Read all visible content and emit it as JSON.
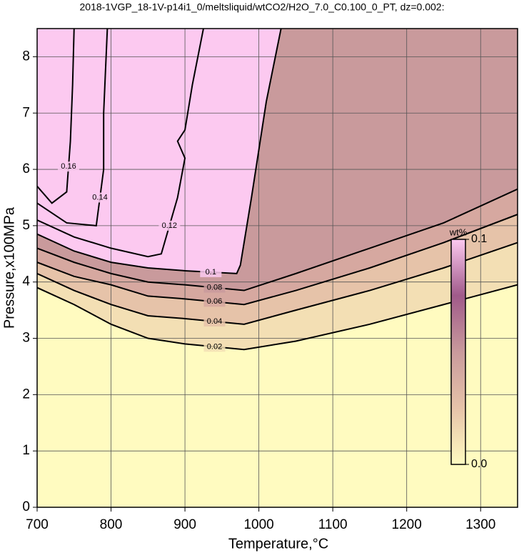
{
  "chart_data": {
    "type": "contour",
    "title": "2018-1VGP_18-1V-p14i1_0/meltsliquid/wtCO2/H2O_7.0_C0.100_0_PT, dz=0.002:",
    "x_label": "Temperature,°C",
    "y_label": "Pressure,x100MPa",
    "xlim": [
      700,
      1350
    ],
    "ylim": [
      0,
      8.5
    ],
    "xticks": [
      700,
      800,
      900,
      1000,
      1100,
      1200,
      1300
    ],
    "yticks": [
      0,
      1,
      2,
      3,
      4,
      5,
      6,
      7,
      8
    ],
    "grid": true,
    "background": "#fffbc0",
    "contours": [
      {
        "level": 0.02,
        "color": "#f3dfb4",
        "x": [
          700,
          750,
          800,
          850,
          900,
          980,
          1050,
          1150,
          1250,
          1350
        ],
        "y": [
          3.9,
          3.6,
          3.25,
          3.0,
          2.9,
          2.8,
          2.95,
          3.25,
          3.6,
          3.95
        ]
      },
      {
        "level": 0.04,
        "color": "#e6c3a9",
        "x": [
          700,
          750,
          800,
          850,
          900,
          980,
          1050,
          1150,
          1250,
          1350
        ],
        "y": [
          4.15,
          3.85,
          3.6,
          3.4,
          3.35,
          3.25,
          3.5,
          3.85,
          4.25,
          4.7
        ]
      },
      {
        "level": 0.06,
        "color": "#d6a8a0",
        "x": [
          700,
          750,
          800,
          850,
          900,
          980,
          1050,
          1150,
          1250,
          1350
        ],
        "y": [
          4.35,
          4.1,
          3.95,
          3.75,
          3.7,
          3.6,
          3.85,
          4.25,
          4.7,
          5.2
        ]
      },
      {
        "level": 0.08,
        "color": "#c99a9c",
        "x": [
          700,
          750,
          800,
          850,
          900,
          980,
          1050,
          1150,
          1250,
          1350
        ],
        "y": [
          4.6,
          4.35,
          4.15,
          4.0,
          3.95,
          3.85,
          4.15,
          4.6,
          5.05,
          5.65
        ]
      },
      {
        "level": 0.1,
        "color": "#fcc9f0",
        "x": [
          700,
          750,
          800,
          850,
          900,
          970,
          975,
          990,
          1010,
          1030
        ],
        "y": [
          4.85,
          4.55,
          4.35,
          4.25,
          4.2,
          4.15,
          4.3,
          5.5,
          7.2,
          8.5
        ]
      },
      {
        "level": 0.12,
        "color": "#fcc9f0",
        "x": [
          700,
          750,
          800,
          850,
          868,
          890,
          900,
          890,
          900,
          910,
          925
        ],
        "y": [
          5.1,
          4.8,
          4.6,
          4.45,
          4.5,
          5.5,
          6.2,
          6.5,
          6.7,
          7.5,
          8.5
        ]
      },
      {
        "level": 0.14,
        "color": "#fcc9f0",
        "x": [
          700,
          740,
          780,
          790,
          790,
          795
        ],
        "y": [
          5.4,
          5.05,
          5.0,
          6.0,
          7.0,
          8.5
        ]
      },
      {
        "level": 0.16,
        "color": "#fcc9f0",
        "x": [
          700,
          720,
          740,
          745,
          748,
          750
        ],
        "y": [
          5.7,
          5.4,
          5.6,
          6.5,
          7.5,
          8.5
        ]
      }
    ],
    "colorbar": {
      "label": "wt%",
      "colors": [
        "#fffbc0",
        "#e6c3a9",
        "#c99a9c",
        "#a05a8a",
        "#fcc9f0"
      ],
      "ticks": [
        {
          "value": 0,
          "label": "0.0"
        },
        0.1
      ]
    }
  }
}
